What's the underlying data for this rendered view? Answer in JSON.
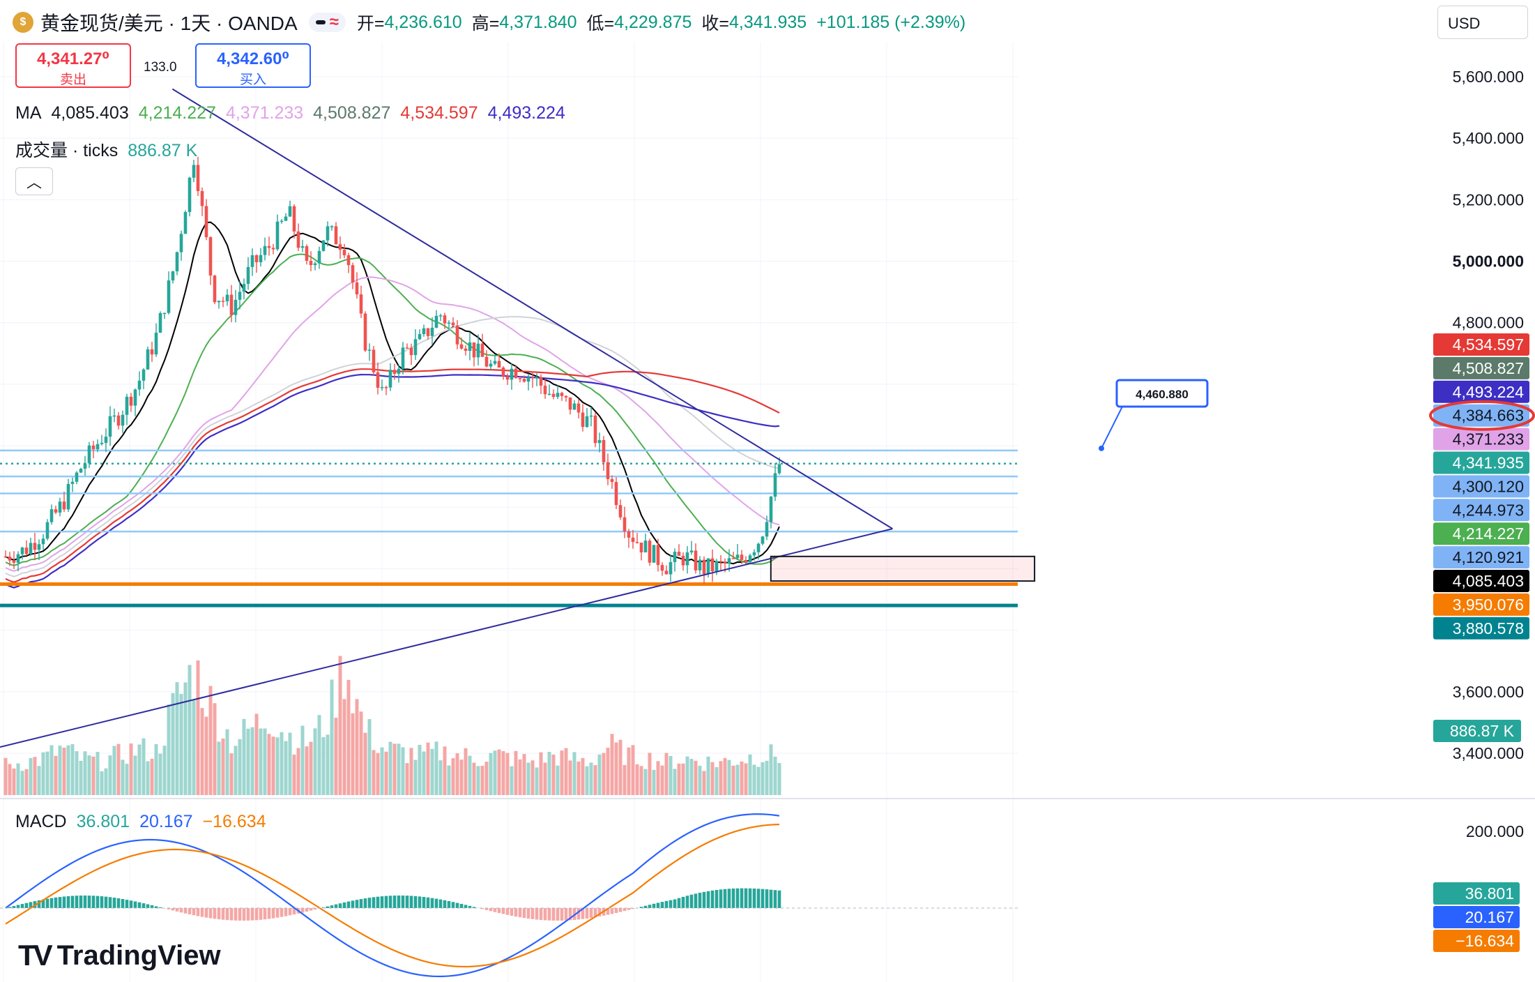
{
  "header": {
    "symbol": "黄金现货/美元 · 1天 · OANDA",
    "open_label": "开=",
    "open": "4,236.610",
    "high_label": "高=",
    "high": "4,371.840",
    "low_label": "低=",
    "low": "4,229.875",
    "close_label": "收=",
    "close": "4,341.935",
    "change": "+101.185 (+2.39%)"
  },
  "quote": {
    "sell_price": "4,341.27⁰",
    "sell_label": "卖出",
    "spread": "133.0",
    "buy_price": "4,342.60⁰",
    "buy_label": "买入"
  },
  "currency": "USD",
  "colors": {
    "up": "#26a69a",
    "down": "#ef5350",
    "ma1": "#000000",
    "ma2": "#4caf50",
    "ma3": "#e1a3e8",
    "ma4": "#cfd3d8",
    "ma5": "#e53935",
    "ma6": "#3d2ec4",
    "trend": "#2f2b9f",
    "support1": "#f57c00",
    "support2": "#00838f",
    "hline": "#90caf9"
  },
  "ma_legend": {
    "label": "MA",
    "values": [
      "4,085.403",
      "4,214.227",
      "4,371.233",
      "4,508.827",
      "4,534.597",
      "4,493.224"
    ]
  },
  "volume_legend": {
    "label": "成交量 · ticks",
    "value": "886.87 K"
  },
  "macd_legend": {
    "label": "MACD",
    "values": [
      "36.801",
      "20.167",
      "−16.634"
    ]
  },
  "brand": "TradingView",
  "chart_data": {
    "type": "candlestick",
    "price_axis": {
      "ticks": [
        "5,600.000",
        "5,400.000",
        "5,200.000",
        "5,000.000",
        "4,800.000",
        "3,600.000",
        "3,400.000"
      ],
      "min": 3300,
      "max": 5700
    },
    "macd_axis": {
      "ticks": [
        "200.000"
      ]
    },
    "price_tags": [
      {
        "value": "4,534.597",
        "color": "#e53935"
      },
      {
        "value": "4,508.827",
        "color": "#5b7a6a"
      },
      {
        "value": "4,493.224",
        "color": "#3d2ec4"
      },
      {
        "value": "4,384.663",
        "color": "#7fb3f5"
      },
      {
        "value": "4,371.233",
        "color": "#e1a3e8"
      },
      {
        "value": "4,341.935",
        "color": "#26a69a"
      },
      {
        "value": "4,300.120",
        "color": "#7fb3f5"
      },
      {
        "value": "4,244.973",
        "color": "#7fb3f5"
      },
      {
        "value": "4,214.227",
        "color": "#4caf50"
      },
      {
        "value": "4,120.921",
        "color": "#7fb3f5"
      },
      {
        "value": "4,085.403",
        "color": "#000000"
      },
      {
        "value": "3,950.076",
        "color": "#f57c00"
      },
      {
        "value": "3,880.578",
        "color": "#00838f"
      }
    ],
    "volume_tag": "886.87 K",
    "macd_tags": [
      {
        "value": "36.801",
        "color": "#26a69a"
      },
      {
        "value": "20.167",
        "color": "#2962ff"
      },
      {
        "value": "−16.634",
        "color": "#f57c00"
      }
    ],
    "callout": "4,460.880",
    "horizontal_levels": [
      {
        "value": 4384.663,
        "style": "solid",
        "color": "#90caf9"
      },
      {
        "value": 4341.935,
        "style": "dotted",
        "color": "#26a69a"
      },
      {
        "value": 4300.12,
        "style": "solid",
        "color": "#90caf9"
      },
      {
        "value": 4244.973,
        "style": "solid",
        "color": "#90caf9"
      },
      {
        "value": 4120.921,
        "style": "solid",
        "color": "#90caf9"
      },
      {
        "value": 3950.076,
        "style": "solid",
        "color": "#f57c00"
      },
      {
        "value": 3880.578,
        "style": "solid",
        "color": "#00838f"
      }
    ],
    "trendlines": [
      {
        "from": [
          0.17,
          5560
        ],
        "to": [
          0.88,
          4130
        ]
      },
      {
        "from": [
          0.0,
          3420
        ],
        "to": [
          0.88,
          4130
        ]
      }
    ],
    "consolidation_box": {
      "x_from": 0.76,
      "x_to": 1.02,
      "price_low": 3960,
      "price_high": 4040
    },
    "approx_trend": {
      "closes": [
        4040,
        4060,
        4120,
        4210,
        4330,
        4420,
        4500,
        4600,
        4760,
        5000,
        5350,
        4900,
        4850,
        4980,
        5050,
        5160,
        4970,
        5100,
        5050,
        4750,
        4560,
        4700,
        4740,
        4830,
        4760,
        4700,
        4640,
        4650,
        4620,
        4560,
        4530,
        4470,
        4300,
        4120,
        4060,
        4010,
        4040,
        4000,
        4010,
        4030,
        4100,
        4340
      ],
      "volumes": [
        0.45,
        0.5,
        0.55,
        0.7,
        0.55,
        0.5,
        0.6,
        0.7,
        0.65,
        1.4,
        1.9,
        1.3,
        0.8,
        1.0,
        1.2,
        0.9,
        0.8,
        1.1,
        2.0,
        1.0,
        0.7,
        0.65,
        0.6,
        0.65,
        0.6,
        0.55,
        0.6,
        0.55,
        0.5,
        0.6,
        0.55,
        0.5,
        0.75,
        0.6,
        0.55,
        0.5,
        0.55,
        0.5,
        0.5,
        0.55,
        0.6,
        0.6
      ]
    }
  }
}
